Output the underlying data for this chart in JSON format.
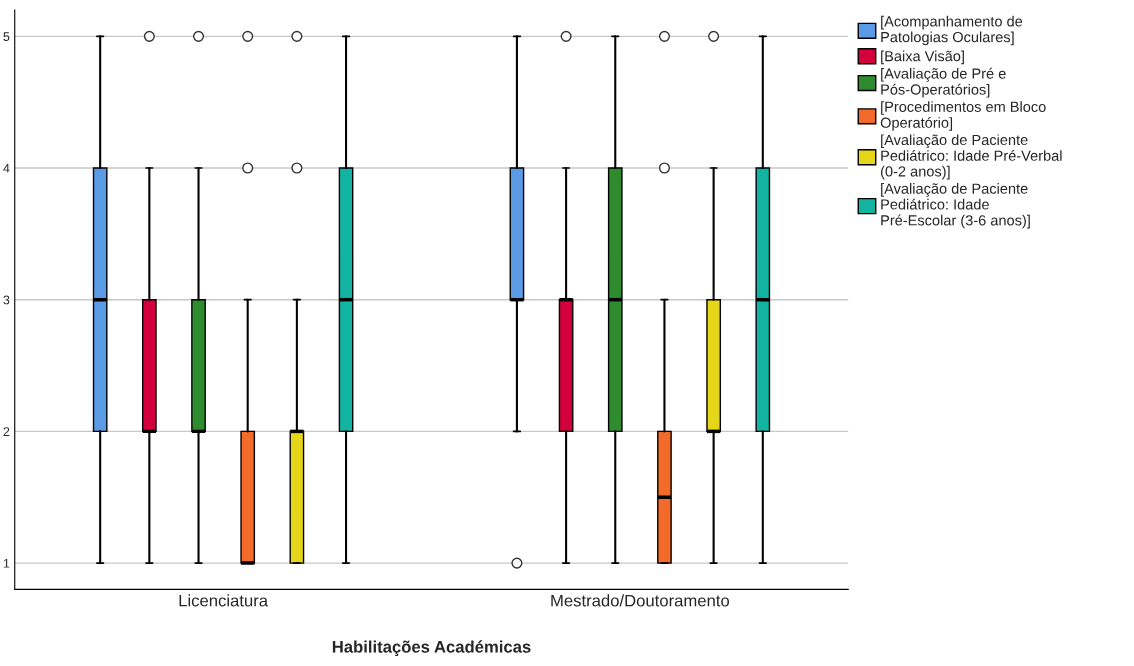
{
  "chart_data": {
    "type": "box",
    "xlabel": "Habilitações Académicas",
    "categories": [
      "Licenciatura",
      "Mestrado/Doutoramento"
    ],
    "ylim": [
      0.8,
      5.2
    ],
    "yticks": [
      1,
      2,
      3,
      4,
      5
    ],
    "grid": "y",
    "legend": "top right",
    "series": [
      {
        "name": "[Acompanhamento de Patologias Oculares]",
        "color": "#5b9be6",
        "boxes": [
          {
            "low": 1,
            "q1": 2,
            "median": 3,
            "q3": 4,
            "high": 5
          },
          {
            "low": 2,
            "q1": 3,
            "median": 3,
            "q3": 4,
            "high": 5,
            "outliers": [
              1
            ]
          }
        ]
      },
      {
        "name": "[Baixa Visão]",
        "color": "#d2003c",
        "boxes": [
          {
            "low": 1,
            "q1": 2,
            "median": 2,
            "q3": 3,
            "high": 4,
            "outliers": [
              5
            ]
          },
          {
            "low": 1,
            "q1": 2,
            "median": 3,
            "q3": 3,
            "high": 4,
            "outliers": [
              5
            ]
          }
        ]
      },
      {
        "name": "[Avaliação de Pré e Pós-Operatórios]",
        "color": "#2e8b2e",
        "boxes": [
          {
            "low": 1,
            "q1": 2,
            "median": 2,
            "q3": 3,
            "high": 4,
            "outliers": [
              5
            ]
          },
          {
            "low": 1,
            "q1": 2,
            "median": 3,
            "q3": 4,
            "high": 5
          }
        ]
      },
      {
        "name": "[Procedimentos em Bloco Operatório]",
        "color": "#f26b2a",
        "boxes": [
          {
            "low": 1,
            "q1": 1,
            "median": 1,
            "q3": 2,
            "high": 3,
            "outliers": [
              4,
              5
            ]
          },
          {
            "low": 1,
            "q1": 1,
            "median": 1.5,
            "q3": 2,
            "high": 3,
            "outliers": [
              4,
              5
            ]
          }
        ]
      },
      {
        "name": "[Avaliação de Paciente Pediátrico: Idade Pré-Verbal (0-2 anos)]",
        "color": "#e6d619",
        "boxes": [
          {
            "low": 1,
            "q1": 1,
            "median": 2,
            "q3": 2,
            "high": 3,
            "outliers": [
              4,
              5
            ]
          },
          {
            "low": 1,
            "q1": 2,
            "median": 2,
            "q3": 3,
            "high": 4,
            "outliers": [
              5
            ]
          }
        ]
      },
      {
        "name": "[Avaliação de Paciente Pediátrico: Idade Pré-Escolar (3-6 anos)]",
        "color": "#12b3a0",
        "boxes": [
          {
            "low": 1,
            "q1": 2,
            "median": 3,
            "q3": 4,
            "high": 5
          },
          {
            "low": 1,
            "q1": 2,
            "median": 3,
            "q3": 4,
            "high": 5
          }
        ]
      }
    ]
  }
}
